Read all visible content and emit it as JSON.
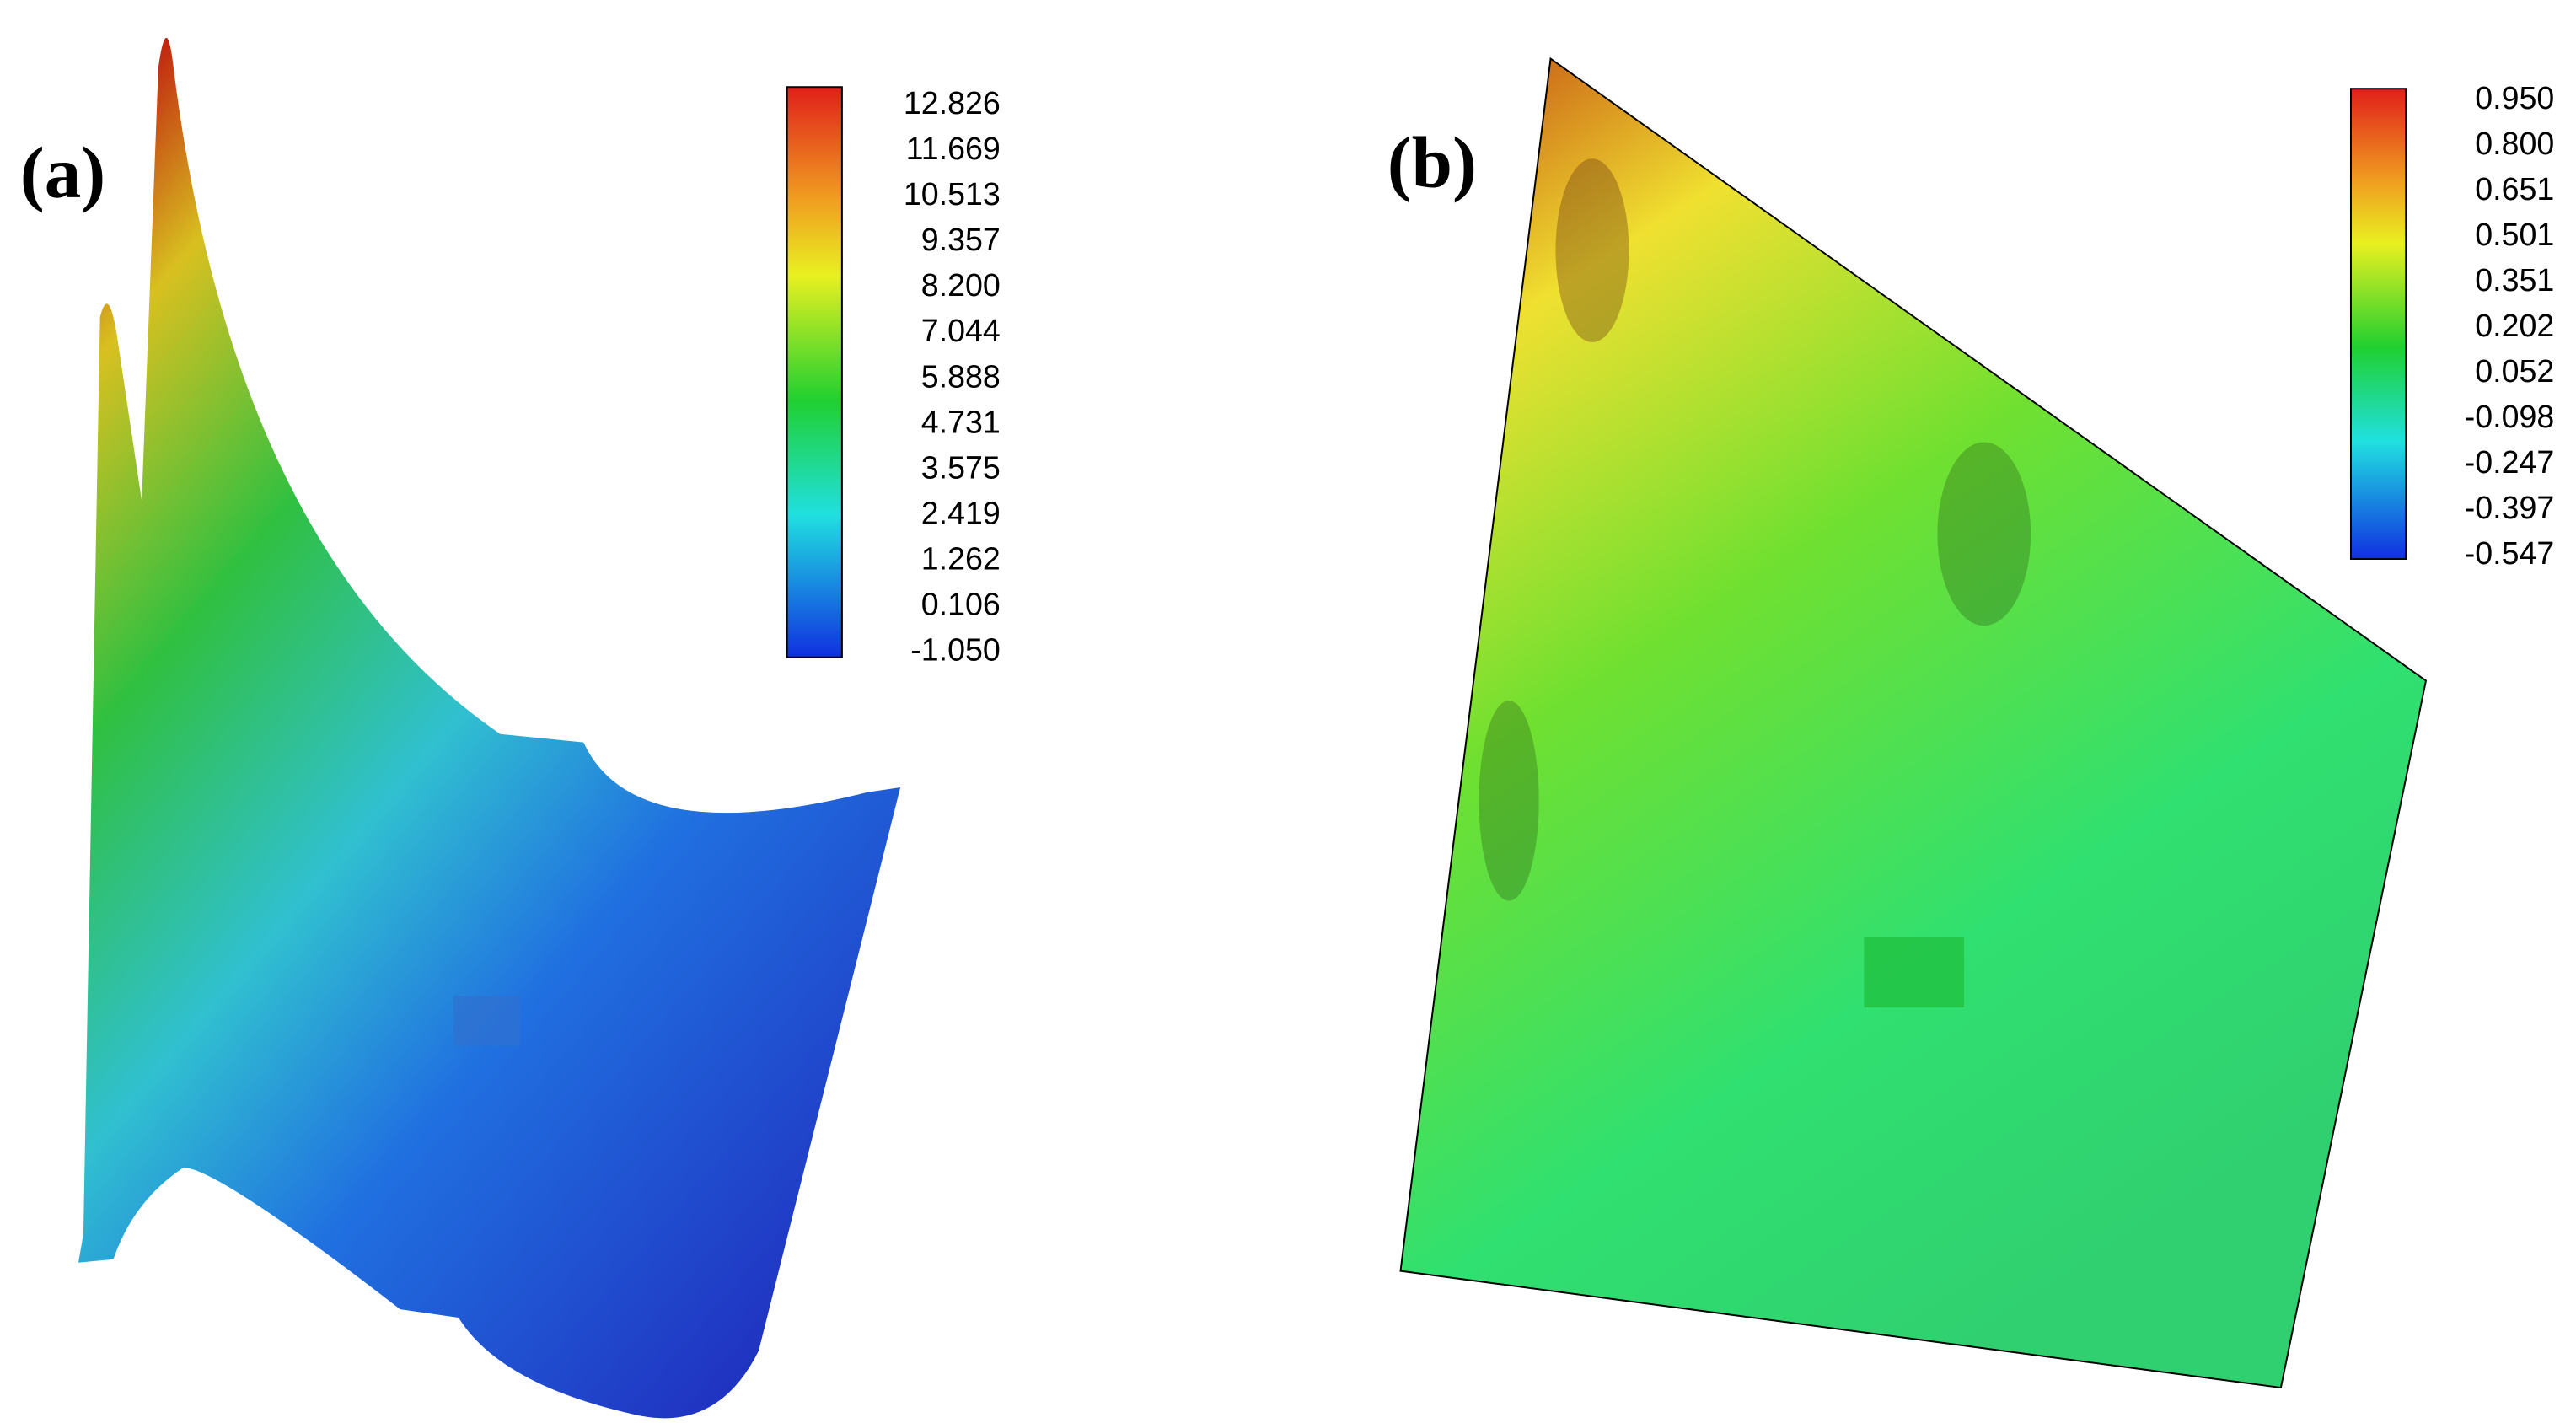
{
  "panels": [
    {
      "label": "(a)",
      "colorbar": {
        "labels": [
          "12.826",
          "11.669",
          "10.513",
          "9.357",
          "8.200",
          "7.044",
          "5.888",
          "4.731",
          "3.575",
          "2.419",
          "1.262",
          "0.106",
          "-1.050"
        ]
      }
    },
    {
      "label": "(b)",
      "colorbar": {
        "labels": [
          "0.950",
          "0.800",
          "0.651",
          "0.501",
          "0.351",
          "0.202",
          "0.052",
          "-0.098",
          "-0.247",
          "-0.397",
          "-0.547"
        ]
      }
    }
  ]
}
